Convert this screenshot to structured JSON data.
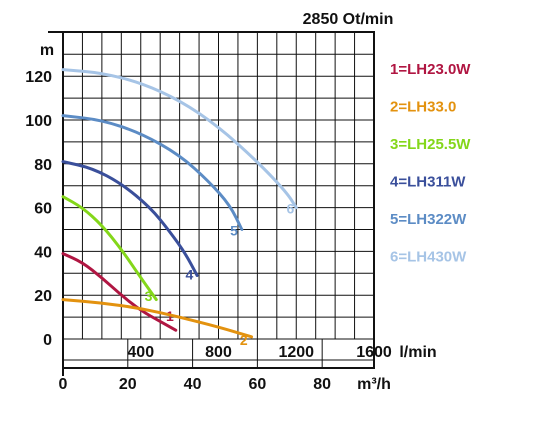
{
  "chart_data": {
    "type": "line",
    "title": "2850 Ot/min",
    "ylabel": "m",
    "xlabel": "l/min",
    "x2label": "m³/h",
    "xlim": [
      0,
      1600
    ],
    "ylim": [
      -10,
      140
    ],
    "x_ticks": [
      {
        "value": 400,
        "label": "400"
      },
      {
        "value": 800,
        "label": "800"
      },
      {
        "value": 1200,
        "label": "1200"
      },
      {
        "value": 1600,
        "label": "1600"
      }
    ],
    "y_ticks": [
      {
        "value": 0,
        "label": "0"
      },
      {
        "value": 20,
        "label": "20"
      },
      {
        "value": 40,
        "label": "40"
      },
      {
        "value": 60,
        "label": "60"
      },
      {
        "value": 80,
        "label": "80"
      },
      {
        "value": 100,
        "label": "100"
      },
      {
        "value": 120,
        "label": "120"
      }
    ],
    "x2_ticks": [
      {
        "value": 0,
        "label": "0"
      },
      {
        "value": 20,
        "label": "20"
      },
      {
        "value": 40,
        "label": "40"
      },
      {
        "value": 60,
        "label": "60"
      },
      {
        "value": 80,
        "label": "80"
      }
    ],
    "grid": true,
    "legend_position": "right",
    "series": [
      {
        "id": "1",
        "name": "1=LH23.0W",
        "color": "#b01642",
        "points": [
          [
            0,
            39
          ],
          [
            100,
            35
          ],
          [
            200,
            28
          ],
          [
            300,
            20
          ],
          [
            400,
            13
          ],
          [
            500,
            8
          ],
          [
            580,
            4
          ]
        ],
        "label_at": [
          550,
          11
        ]
      },
      {
        "id": "2",
        "name": "2=LH33.0",
        "color": "#e3920f",
        "points": [
          [
            0,
            18
          ],
          [
            200,
            16.5
          ],
          [
            400,
            14
          ],
          [
            600,
            10
          ],
          [
            800,
            5.5
          ],
          [
            970,
            1
          ]
        ],
        "label_at": [
          930,
          0
        ]
      },
      {
        "id": "3",
        "name": "3=LH25.5W",
        "color": "#84d71a",
        "points": [
          [
            0,
            65
          ],
          [
            100,
            60
          ],
          [
            200,
            52
          ],
          [
            300,
            41
          ],
          [
            400,
            28
          ],
          [
            480,
            18
          ]
        ],
        "label_at": [
          440,
          20
        ]
      },
      {
        "id": "4",
        "name": "4=LH311W",
        "color": "#3a4f9b",
        "points": [
          [
            0,
            81
          ],
          [
            150,
            78
          ],
          [
            300,
            71
          ],
          [
            450,
            60
          ],
          [
            550,
            49
          ],
          [
            630,
            39
          ],
          [
            690,
            29
          ]
        ],
        "label_at": [
          650,
          30
        ]
      },
      {
        "id": "5",
        "name": "5=LH322W",
        "color": "#5c8cc5",
        "points": [
          [
            0,
            102
          ],
          [
            200,
            100
          ],
          [
            400,
            94
          ],
          [
            600,
            84
          ],
          [
            750,
            72
          ],
          [
            860,
            61
          ],
          [
            920,
            50
          ]
        ],
        "label_at": [
          880,
          50
        ]
      },
      {
        "id": "6",
        "name": "6=LH430W",
        "color": "#a6c4e6",
        "points": [
          [
            0,
            123
          ],
          [
            200,
            121.5
          ],
          [
            400,
            117
          ],
          [
            600,
            109
          ],
          [
            800,
            97
          ],
          [
            1000,
            81
          ],
          [
            1150,
            67
          ],
          [
            1200,
            60
          ]
        ],
        "label_at": [
          1170,
          60
        ]
      }
    ]
  }
}
